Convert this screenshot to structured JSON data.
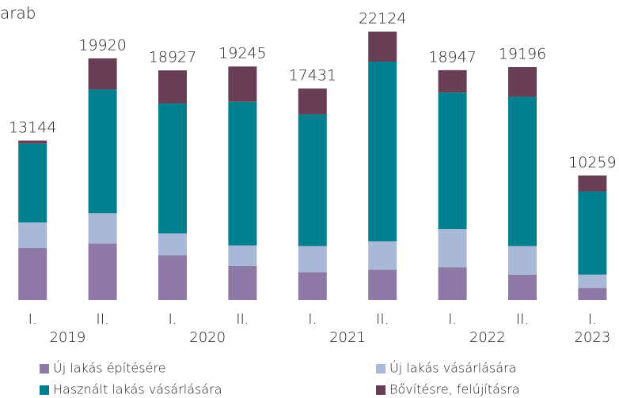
{
  "chart_data": {
    "type": "stacked_bar",
    "title": "arab",
    "categories": [
      "I.",
      "II.",
      "I.",
      "II.",
      "I.",
      "II.",
      "I.",
      "II.",
      "I."
    ],
    "years": [
      "2019",
      null,
      "2020",
      null,
      "2021",
      null,
      "2022",
      null,
      "2023"
    ],
    "totals": [
      13144,
      19920,
      18927,
      19245,
      17431,
      22124,
      18947,
      19196,
      10259
    ],
    "series": [
      {
        "name": "Új lakás építésére",
        "color": "#8e78a6",
        "values": [
          4300,
          4650,
          3700,
          2800,
          2300,
          2500,
          2700,
          2100,
          1000
        ]
      },
      {
        "name": "Új lakás vásárlására",
        "color": "#a9b8d6",
        "values": [
          2100,
          2500,
          1800,
          1700,
          2150,
          2350,
          3150,
          2350,
          1100
        ]
      },
      {
        "name": "Használt lakás vásárlására",
        "color": "#00808f",
        "values": [
          6500,
          10200,
          10700,
          11850,
          10850,
          14800,
          11250,
          12300,
          6850
        ]
      },
      {
        "name": "Bővítésre, felújításra",
        "color": "#683e54",
        "values": [
          244,
          2570,
          2727,
          2895,
          2131,
          2474,
          1847,
          2446,
          1309
        ]
      }
    ]
  }
}
